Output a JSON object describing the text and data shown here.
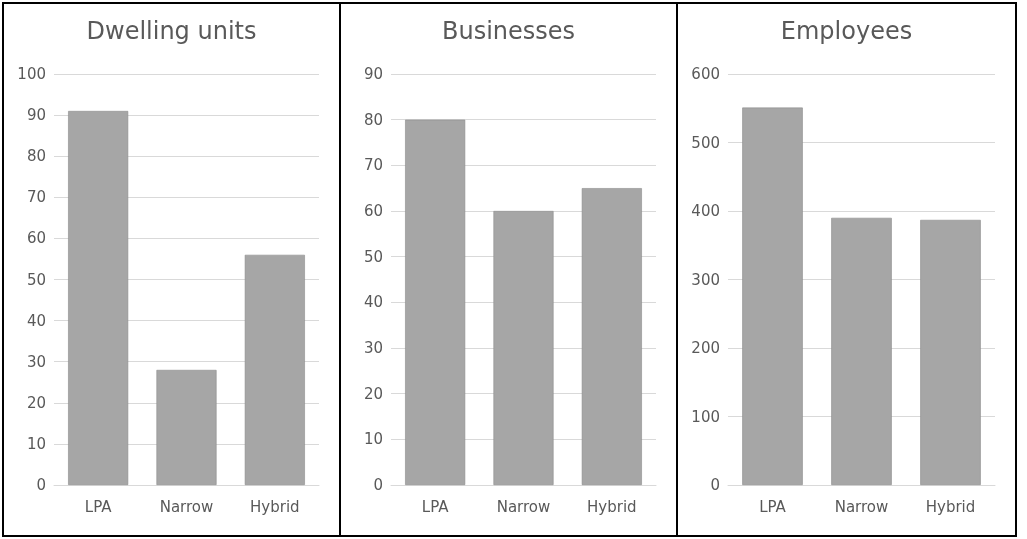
{
  "chart_data": [
    {
      "type": "bar",
      "title": "Dwelling units",
      "categories": [
        "LPA",
        "Narrow",
        "Hybrid"
      ],
      "values": [
        91,
        28,
        56
      ],
      "color": "#a6a6a6",
      "ylim": [
        0,
        100
      ],
      "yticks": [
        0,
        10,
        20,
        30,
        40,
        50,
        60,
        70,
        80,
        90,
        100
      ],
      "grid": "y"
    },
    {
      "type": "bar",
      "title": "Businesses",
      "categories": [
        "LPA",
        "Narrow",
        "Hybrid"
      ],
      "values": [
        80,
        60,
        65
      ],
      "color": "#a6a6a6",
      "ylim": [
        0,
        90
      ],
      "yticks": [
        0,
        10,
        20,
        30,
        40,
        50,
        60,
        70,
        80,
        90
      ],
      "grid": "y"
    },
    {
      "type": "bar",
      "title": "Employees",
      "categories": [
        "LPA",
        "Narrow",
        "Hybrid"
      ],
      "values": [
        551,
        390,
        387
      ],
      "color": "#a6a6a6",
      "ylim": [
        0,
        600
      ],
      "yticks": [
        0,
        100,
        200,
        300,
        400,
        500,
        600
      ],
      "grid": "y"
    }
  ]
}
